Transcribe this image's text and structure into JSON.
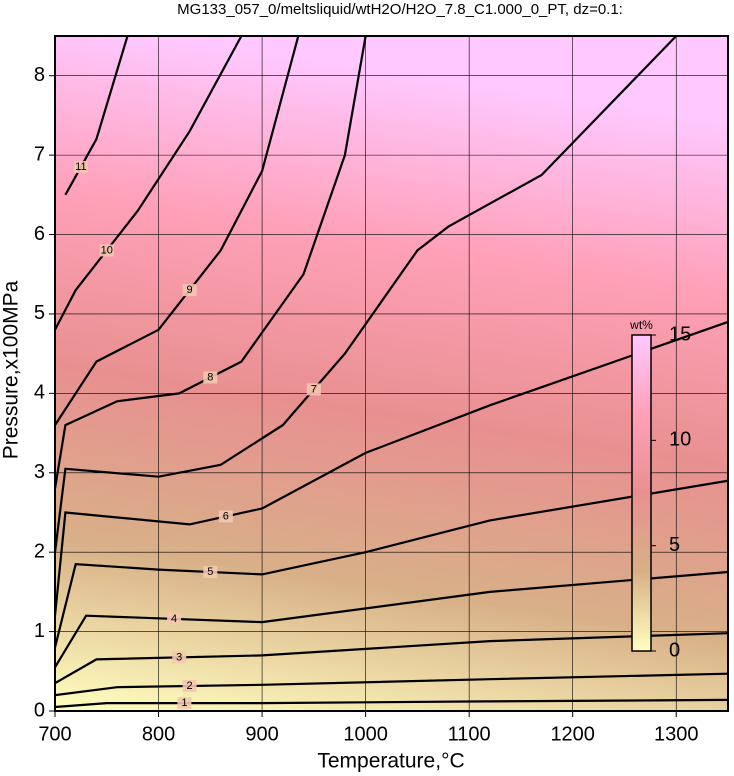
{
  "chart_data": {
    "type": "contour",
    "title": "MG133_057_0/meltsliquid/wtH2O/H2O_7.8_C1.000_0_PT, dz=0.1:",
    "x_label": "Temperature,°C",
    "y_label": "Pressure,x100MPa",
    "xlim": [
      700,
      1350
    ],
    "ylim": [
      0,
      8.5
    ],
    "xticks": [
      700,
      800,
      900,
      1000,
      1100,
      1200,
      1300
    ],
    "yticks": [
      0,
      1,
      2,
      3,
      4,
      5,
      6,
      7,
      8
    ],
    "grid": true,
    "colorbar": {
      "label": "wt%",
      "lim": [
        0,
        15
      ],
      "ticks": [
        0,
        5,
        10,
        15
      ],
      "colors": [
        "#ffffc0",
        "#d8b088",
        "#e89090",
        "#ffa0b8",
        "#ffc8ff"
      ]
    },
    "series": [
      {
        "name": "1",
        "color": "#000000",
        "x": [
          700,
          750,
          900,
          1100,
          1350
        ],
        "values": [
          0.05,
          0.1,
          0.1,
          0.12,
          0.14
        ]
      },
      {
        "name": "2",
        "color": "#000000",
        "x": [
          700,
          760,
          900,
          1120,
          1350
        ],
        "values": [
          0.2,
          0.3,
          0.33,
          0.4,
          0.47
        ]
      },
      {
        "name": "3",
        "color": "#000000",
        "x": [
          700,
          740,
          900,
          1120,
          1350
        ],
        "values": [
          0.35,
          0.65,
          0.7,
          0.88,
          0.98
        ]
      },
      {
        "name": "4",
        "color": "#000000",
        "x": [
          700,
          730,
          900,
          1120,
          1350
        ],
        "values": [
          0.55,
          1.2,
          1.12,
          1.5,
          1.75
        ]
      },
      {
        "name": "5",
        "color": "#000000",
        "x": [
          700,
          720,
          800,
          900,
          1000,
          1120,
          1350
        ],
        "values": [
          0.8,
          1.85,
          1.78,
          1.72,
          2.0,
          2.4,
          2.9
        ]
      },
      {
        "name": "6",
        "color": "#000000",
        "x": [
          700,
          710,
          830,
          900,
          1000,
          1120,
          1350
        ],
        "values": [
          1.2,
          2.5,
          2.35,
          2.55,
          3.25,
          3.85,
          4.9
        ]
      },
      {
        "name": "7",
        "color": "#000000",
        "x": [
          700,
          710,
          800,
          860,
          920,
          980,
          1050,
          1080,
          1170,
          1300
        ],
        "values": [
          2,
          3.05,
          2.95,
          3.1,
          3.6,
          4.5,
          5.8,
          6.1,
          6.75,
          8.5
        ]
      },
      {
        "name": "8",
        "color": "#000000",
        "x": [
          700,
          710,
          760,
          820,
          880,
          940,
          980,
          1000
        ],
        "values": [
          2.8,
          3.6,
          3.9,
          4.0,
          4.4,
          5.5,
          7,
          8.5
        ]
      },
      {
        "name": "9",
        "color": "#000000",
        "x": [
          700,
          740,
          800,
          860,
          900,
          935
        ],
        "values": [
          3.6,
          4.4,
          4.8,
          5.8,
          6.8,
          8.5
        ]
      },
      {
        "name": "10",
        "color": "#000000",
        "x": [
          700,
          720,
          780,
          830,
          880
        ],
        "values": [
          4.8,
          5.3,
          6.3,
          7.3,
          8.5
        ]
      },
      {
        "name": "11",
        "color": "#000000",
        "x": [
          710,
          740,
          770
        ],
        "values": [
          6.5,
          7.2,
          8.5
        ]
      }
    ]
  }
}
